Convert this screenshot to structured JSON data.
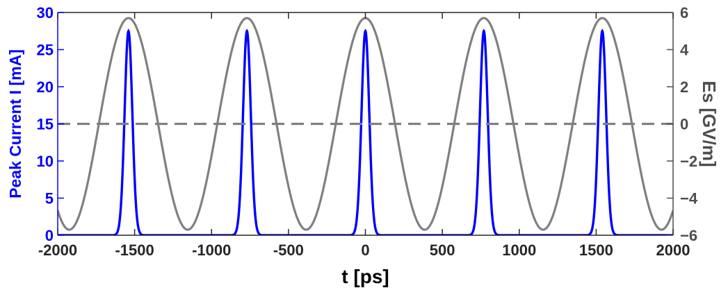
{
  "chart_data": {
    "type": "line",
    "title": "",
    "xlabel": "t [ps]",
    "ylabel_left": "Peak Current I [mA]",
    "ylabel_right": "Es [GV/m]",
    "xlim": [
      -2000,
      2000
    ],
    "ylim_left": [
      0,
      30
    ],
    "ylim_right": [
      -6,
      6
    ],
    "x_ticks": [
      -2000,
      -1500,
      -1000,
      -500,
      0,
      500,
      1000,
      1500,
      2000
    ],
    "y_left_ticks": [
      0,
      5,
      10,
      15,
      20,
      25,
      30
    ],
    "y_right_ticks": [
      -6,
      -4,
      -2,
      0,
      2,
      4,
      6
    ],
    "grid": false,
    "legend": "none",
    "colors": {
      "current": "#0000ff",
      "field": "#808080",
      "left_axis": "#0000ff",
      "right_axis": "#4d4d4d",
      "axis_frame": "#262626"
    },
    "series": [
      {
        "axis": "left",
        "color": "#0000ff",
        "shape": "gaussian-pulse-train",
        "peak": 27.5,
        "baseline": 0,
        "pulse_centers": [
          -1540,
          -770,
          0,
          770,
          1540
        ],
        "pulse_sigma_ps": 25
      },
      {
        "axis": "right",
        "color": "#808080",
        "shape": "cosine",
        "amplitude": 5.7,
        "offset": 0,
        "period_ps": 770,
        "crest_at_ps": -1540
      },
      {
        "axis": "right",
        "color": "#808080",
        "shape": "dashed-horizontal",
        "value": 0
      }
    ]
  }
}
